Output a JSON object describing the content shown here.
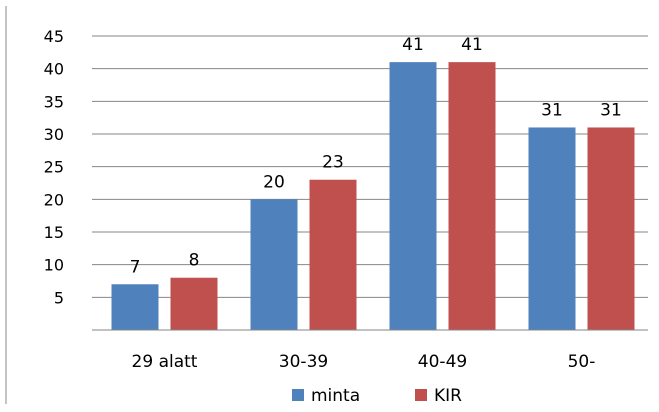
{
  "chart_data": {
    "type": "bar",
    "categories": [
      "29 alatt",
      "30-39",
      "40-49",
      "50-"
    ],
    "series": [
      {
        "name": "minta",
        "values": [
          7,
          20,
          41,
          31
        ],
        "labels": [
          "7",
          "20",
          "41",
          "31"
        ]
      },
      {
        "name": "KIR",
        "values": [
          8,
          23,
          41,
          31
        ],
        "labels": [
          "8",
          "23",
          "41",
          "31"
        ]
      }
    ],
    "yticks": [
      "45",
      "40",
      "35",
      "30",
      "25",
      "20",
      "15",
      "10",
      "5"
    ],
    "ytick_values": [
      45,
      40,
      35,
      30,
      25,
      20,
      15,
      10,
      5
    ],
    "ylim": [
      0,
      45
    ],
    "grid": true,
    "legend_position": "bottom",
    "colors": [
      "#4F81BD",
      "#C0504D"
    ]
  }
}
